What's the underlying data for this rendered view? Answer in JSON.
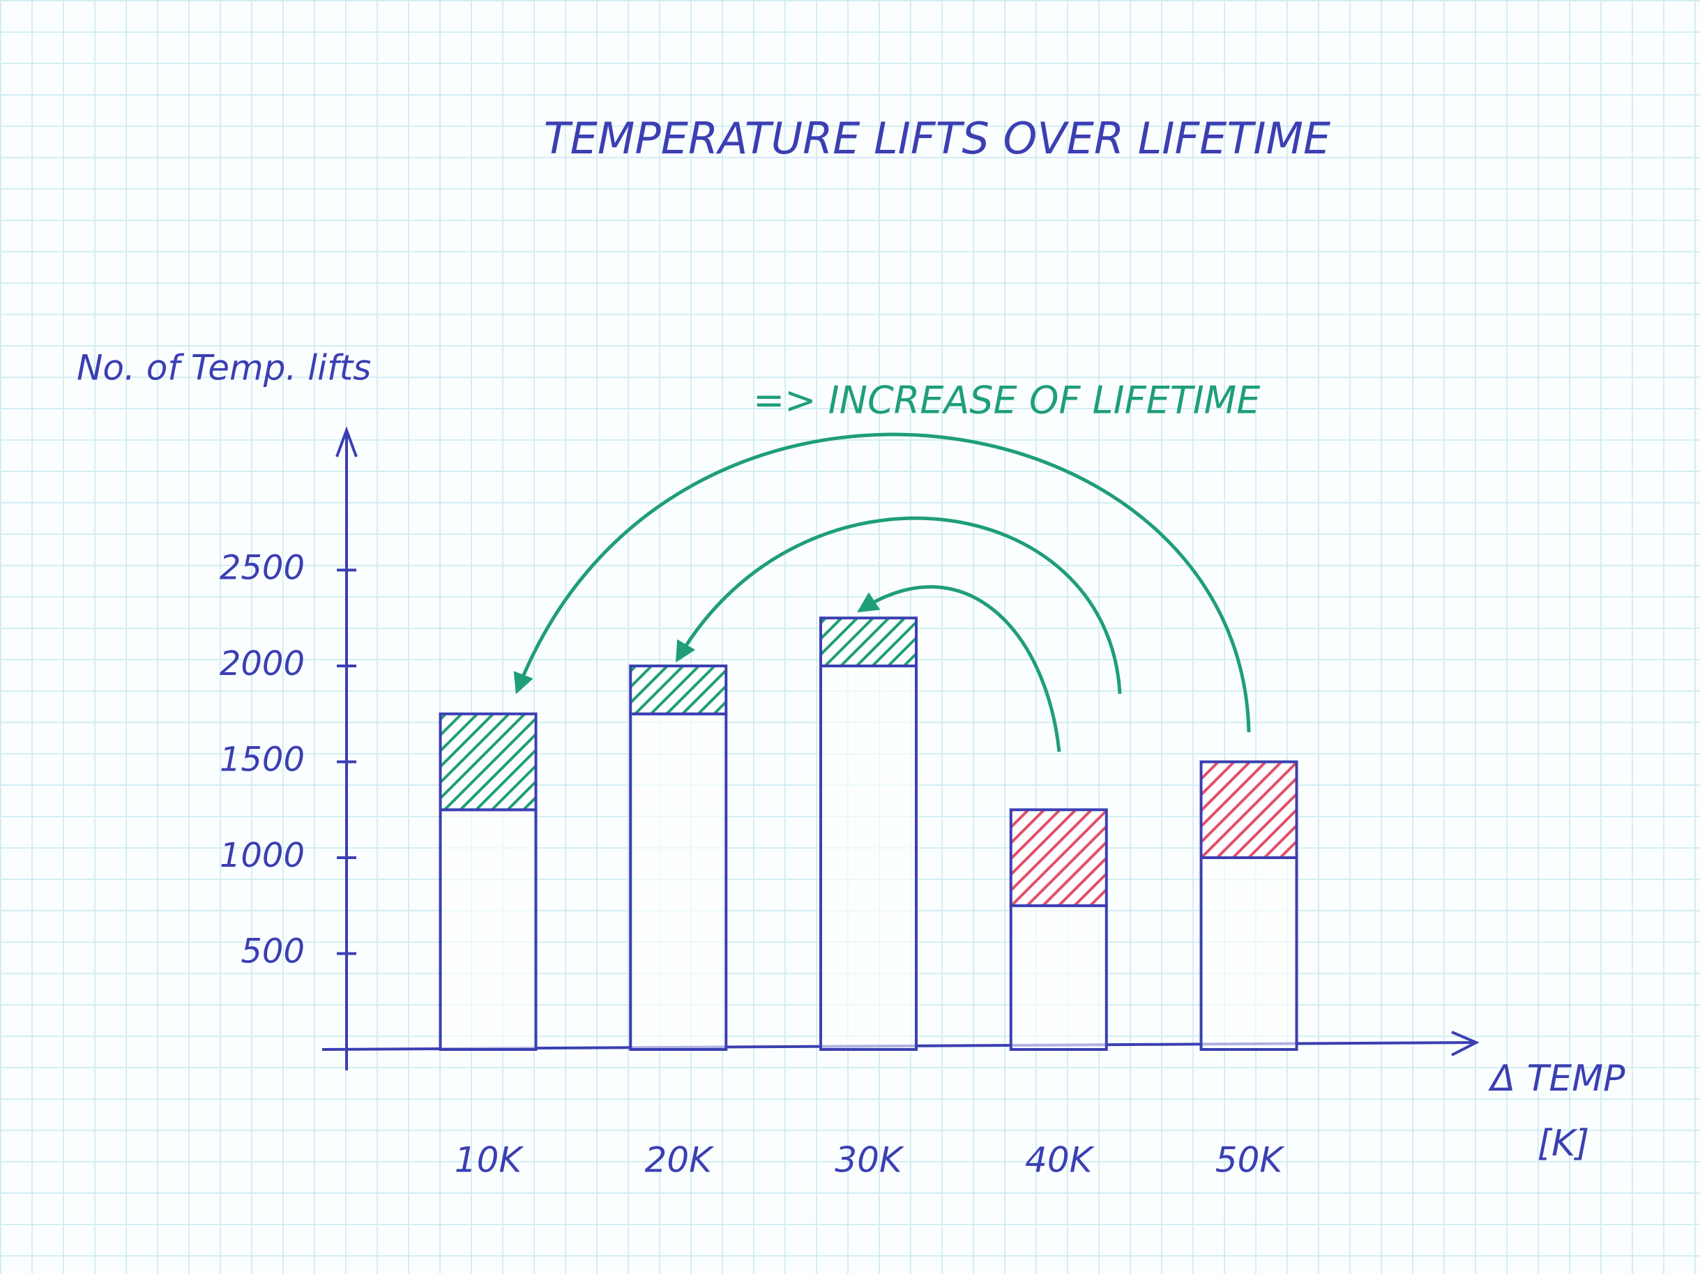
{
  "chart_data": {
    "type": "bar",
    "stacked": true,
    "title": "TEMPERATURE LIFTS OVER LIFETIME",
    "y_label": "No. of Temp. lifts",
    "x_label": [
      "Δ TEMP",
      "[K]"
    ],
    "annotation": "=> INCREASE OF LIFETIME",
    "categories": [
      "10K",
      "20K",
      "30K",
      "40K",
      "50K"
    ],
    "series": [
      {
        "color": "#3b3fb2",
        "values": [
          1250,
          1750,
          2000,
          750,
          1000
        ]
      },
      {
        "color": "#1f9e78",
        "hatched": true,
        "values": [
          500,
          250,
          250,
          null,
          null
        ]
      },
      {
        "color": "#e0506a",
        "hatched": true,
        "values": [
          null,
          null,
          null,
          500,
          500
        ]
      }
    ],
    "ylim": [
      0,
      3200
    ],
    "yticks": [
      500,
      1000,
      1500,
      2000,
      2500
    ],
    "grid": false
  }
}
